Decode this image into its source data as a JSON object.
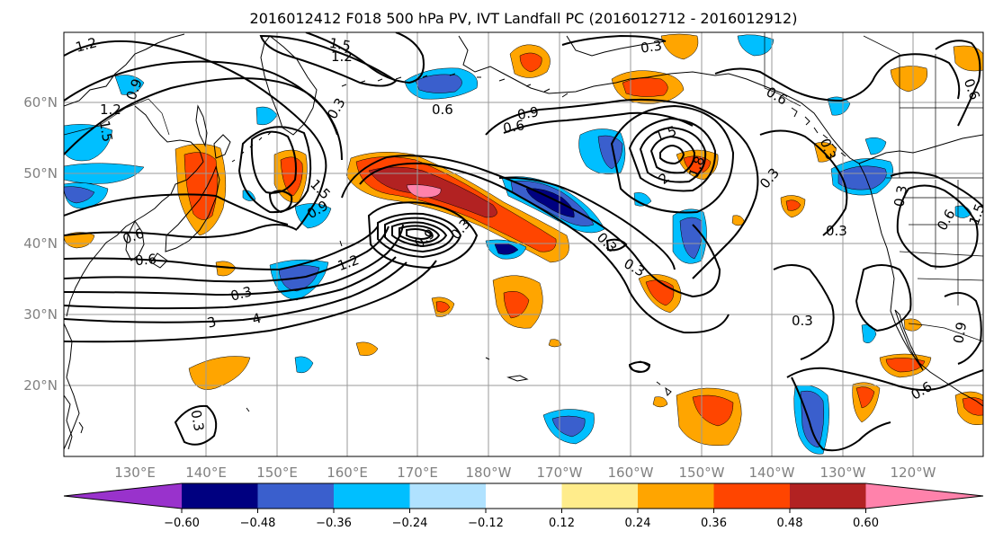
{
  "title": "2016012412 F018 500 hPa PV, IVT Landfall PC (2016012712 - 2016012912)",
  "lat_labels": [
    "20°N",
    "30°N",
    "40°N",
    "50°N",
    "60°N"
  ],
  "lon_labels": [
    "130°E",
    "140°E",
    "150°E",
    "160°E",
    "170°E",
    "180°W",
    "170°W",
    "160°W",
    "150°W",
    "140°W",
    "130°W",
    "120°W"
  ],
  "colorbar": {
    "ticks": [
      "−0.60",
      "−0.48",
      "−0.36",
      "−0.24",
      "−0.12",
      "0.12",
      "0.24",
      "0.36",
      "0.48",
      "0.60"
    ],
    "colors": [
      "#9932cc",
      "#000080",
      "#3a5fcd",
      "#00bfff",
      "#b0e2ff",
      "#ffffff",
      "#ffec8b",
      "#ffa500",
      "#ff4500",
      "#b22222",
      "#ff82ab"
    ]
  },
  "contour_labels": [
    "1.2",
    "1.5",
    "0.3",
    "1.2",
    "0.9",
    "1.2",
    "1.5",
    "0.3",
    "0.6",
    "0.9",
    "0.6",
    "1.5",
    "2",
    "1.8",
    "0.3",
    "0.6",
    "0.3",
    "0.6",
    "0.3",
    "0.6",
    "1.5",
    "0.3",
    "0.6",
    "1.5",
    "0.9",
    "0.6",
    "0.3",
    "3",
    "4",
    "1.2",
    "0.9",
    "0.3",
    "0.3",
    "0.3",
    "0.3",
    "0.6",
    "0.3",
    "0.9"
  ]
}
